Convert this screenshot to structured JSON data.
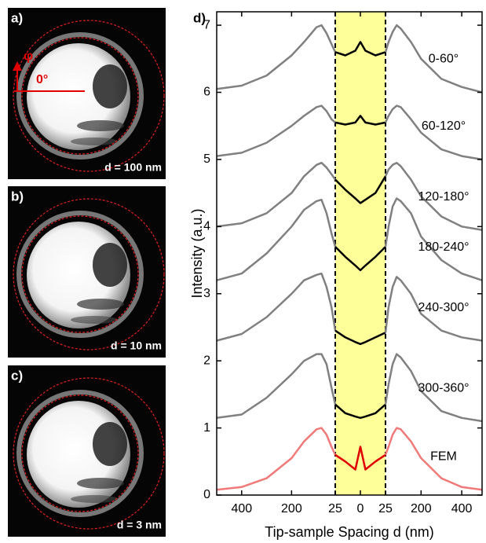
{
  "panels": [
    {
      "label": "a)",
      "caption": "d = 100 nm",
      "annotations": [
        "φ",
        "0°"
      ]
    },
    {
      "label": "b)",
      "caption": "d = 10 nm"
    },
    {
      "label": "c)",
      "caption": "d = 3 nm"
    }
  ],
  "chart_data": {
    "type": "line",
    "panel_label": "d)",
    "xlabel": "Tip-sample Spacing d (nm)",
    "ylabel": "Intensity (a.u.)",
    "xlim": [
      -500,
      500
    ],
    "ylim": [
      0,
      7.2
    ],
    "xticks": [
      {
        "value": -400,
        "label": "400"
      },
      {
        "value": -200,
        "label": "200"
      },
      {
        "value": -25,
        "label": "25"
      },
      0,
      25,
      200,
      400
    ],
    "yticks": [
      0,
      1,
      2,
      3,
      4,
      5,
      6,
      7
    ],
    "band": [
      -25,
      25
    ],
    "band_color": "#ffff99",
    "x": [
      -500,
      -400,
      -300,
      -200,
      -150,
      -100,
      -80,
      -60,
      -40,
      -25,
      -15,
      -5,
      0,
      5,
      15,
      25,
      40,
      60,
      80,
      100,
      150,
      200,
      300,
      400,
      500
    ],
    "series": [
      {
        "name": "0-60°",
        "color": "#808080",
        "inner_color": "#000000",
        "values": [
          6.05,
          6.1,
          6.25,
          6.55,
          6.75,
          6.97,
          7.0,
          6.88,
          6.72,
          6.6,
          6.55,
          6.62,
          6.75,
          6.62,
          6.55,
          6.6,
          6.75,
          6.9,
          7.0,
          6.95,
          6.75,
          6.5,
          6.2,
          6.08,
          6.0
        ]
      },
      {
        "name": "60-120°",
        "color": "#808080",
        "inner_color": "#000000",
        "values": [
          5.05,
          5.1,
          5.25,
          5.5,
          5.65,
          5.78,
          5.8,
          5.72,
          5.6,
          5.55,
          5.52,
          5.55,
          5.65,
          5.55,
          5.52,
          5.55,
          5.65,
          5.75,
          5.8,
          5.78,
          5.6,
          5.4,
          5.15,
          5.05,
          5.0
        ]
      },
      {
        "name": "120-180°",
        "color": "#808080",
        "inner_color": "#000000",
        "values": [
          4.0,
          4.05,
          4.2,
          4.5,
          4.75,
          4.92,
          4.95,
          4.88,
          4.78,
          4.7,
          4.55,
          4.42,
          4.35,
          4.4,
          4.5,
          4.75,
          4.85,
          4.92,
          4.95,
          4.9,
          4.7,
          4.45,
          4.15,
          4.0,
          3.95
        ]
      },
      {
        "name": "180-240°",
        "color": "#808080",
        "inner_color": "#000000",
        "values": [
          3.2,
          3.3,
          3.6,
          4.0,
          4.25,
          4.38,
          4.4,
          4.2,
          3.9,
          3.7,
          3.55,
          3.42,
          3.35,
          3.42,
          3.55,
          3.7,
          4.0,
          4.3,
          4.42,
          4.38,
          4.2,
          3.85,
          3.5,
          3.3,
          3.2
        ]
      },
      {
        "name": "240-300°",
        "color": "#808080",
        "inner_color": "#000000",
        "values": [
          2.3,
          2.4,
          2.65,
          3.0,
          3.2,
          3.28,
          3.3,
          3.1,
          2.8,
          2.45,
          2.35,
          2.28,
          2.25,
          2.28,
          2.35,
          2.42,
          2.8,
          3.1,
          3.25,
          3.2,
          3.0,
          2.7,
          2.45,
          2.35,
          2.3
        ]
      },
      {
        "name": "300-360°",
        "color": "#808080",
        "inner_color": "#000000",
        "values": [
          1.15,
          1.2,
          1.45,
          1.8,
          2.0,
          2.1,
          2.1,
          1.95,
          1.6,
          1.35,
          1.22,
          1.17,
          1.15,
          1.17,
          1.22,
          1.35,
          1.65,
          1.95,
          2.1,
          2.05,
          1.85,
          1.55,
          1.25,
          1.15,
          1.1
        ]
      },
      {
        "name": "FEM",
        "color": "#f07a7a",
        "inner_color": "#e00000",
        "values": [
          0.08,
          0.12,
          0.25,
          0.55,
          0.8,
          0.98,
          1.0,
          0.9,
          0.72,
          0.6,
          0.5,
          0.38,
          0.72,
          0.38,
          0.5,
          0.6,
          0.72,
          0.9,
          1.0,
          0.98,
          0.8,
          0.55,
          0.25,
          0.12,
          0.08
        ]
      }
    ]
  }
}
